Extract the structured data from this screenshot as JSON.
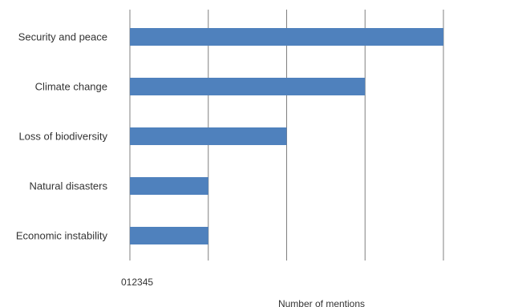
{
  "chart_data": {
    "type": "bar",
    "orientation": "horizontal",
    "categories": [
      "Security and peace",
      "Climate change",
      "Loss of biodiversity",
      "Natural disasters",
      "Economic instability"
    ],
    "values": [
      4,
      3,
      2,
      1,
      1
    ],
    "xlabel": "Number of mentions",
    "ylabel": "",
    "xlim": [
      0,
      4
    ],
    "tick_labels_text": "012345",
    "grid": "vertical",
    "legend": "none",
    "colors": {
      "bar": "#4f81bd",
      "grid": "#808080",
      "text": "#333333"
    }
  }
}
